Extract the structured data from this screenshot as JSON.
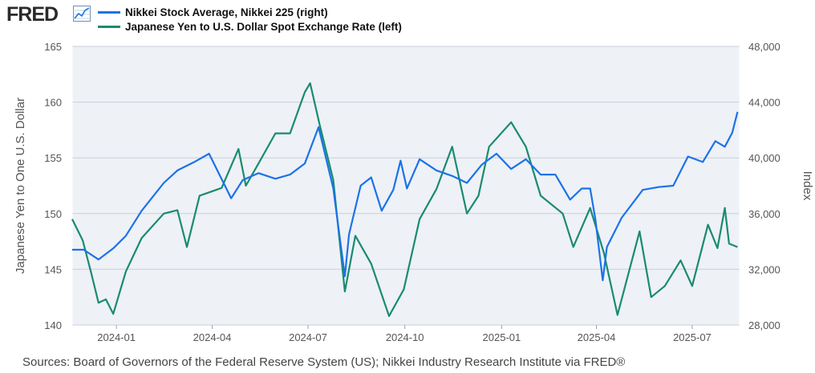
{
  "header": {
    "logo": "FRED"
  },
  "colors": {
    "nikkei": "#1a73e8",
    "yen": "#198b6f",
    "plot_bg": "#eef1f6",
    "grid": "#c9cfd8"
  },
  "legend": [
    {
      "label": "Nikkei Stock Average, Nikkei 225 (right)",
      "color": "#1a73e8"
    },
    {
      "label": "Japanese Yen to U.S. Dollar Spot Exchange Rate (left)",
      "color": "#198b6f"
    }
  ],
  "footer": {
    "source": "Sources: Board of Governors of the Federal Reserve System (US); Nikkei Industry Research Institute via FRED®"
  },
  "chart_data": {
    "type": "line",
    "x_ticks": [
      "2024-01",
      "2024-04",
      "2024-07",
      "2024-10",
      "2025-01",
      "2025-04",
      "2025-07"
    ],
    "left_axis": {
      "label": "Japanese Yen to One U.S. Dollar",
      "ticks": [
        140,
        145,
        150,
        155,
        160,
        165
      ],
      "range": [
        140,
        165
      ]
    },
    "right_axis": {
      "label": "Index",
      "ticks": [
        "28,000",
        "32,000",
        "36,000",
        "40,000",
        "44,000",
        "48,000"
      ],
      "range": [
        28000,
        48000
      ]
    },
    "x_range": [
      "2023-11-20",
      "2025-08-15"
    ],
    "grid": true,
    "series": [
      {
        "name": "Nikkei Stock Average, Nikkei 225 (right)",
        "axis": "right",
        "points": [
          [
            "2023-11-20",
            33400
          ],
          [
            "2023-12-01",
            33400
          ],
          [
            "2023-12-15",
            32700
          ],
          [
            "2023-12-29",
            33500
          ],
          [
            "2024-01-10",
            34400
          ],
          [
            "2024-01-25",
            36200
          ],
          [
            "2024-02-15",
            38200
          ],
          [
            "2024-02-28",
            39100
          ],
          [
            "2024-03-15",
            39700
          ],
          [
            "2024-03-29",
            40300
          ],
          [
            "2024-04-19",
            37100
          ],
          [
            "2024-04-30",
            38400
          ],
          [
            "2024-05-15",
            38900
          ],
          [
            "2024-05-31",
            38500
          ],
          [
            "2024-06-14",
            38800
          ],
          [
            "2024-06-28",
            39600
          ],
          [
            "2024-07-11",
            42200
          ],
          [
            "2024-07-25",
            37800
          ],
          [
            "2024-08-05",
            31500
          ],
          [
            "2024-08-09",
            34500
          ],
          [
            "2024-08-20",
            38000
          ],
          [
            "2024-08-30",
            38600
          ],
          [
            "2024-09-09",
            36200
          ],
          [
            "2024-09-20",
            37700
          ],
          [
            "2024-09-27",
            39800
          ],
          [
            "2024-10-03",
            37800
          ],
          [
            "2024-10-15",
            39900
          ],
          [
            "2024-10-31",
            39100
          ],
          [
            "2024-11-15",
            38700
          ],
          [
            "2024-11-29",
            38200
          ],
          [
            "2024-12-13",
            39500
          ],
          [
            "2024-12-27",
            40300
          ],
          [
            "2025-01-10",
            39200
          ],
          [
            "2025-01-24",
            39900
          ],
          [
            "2025-02-07",
            38800
          ],
          [
            "2025-02-21",
            38800
          ],
          [
            "2025-03-07",
            37000
          ],
          [
            "2025-03-18",
            37800
          ],
          [
            "2025-03-26",
            37800
          ],
          [
            "2025-03-31",
            35600
          ],
          [
            "2025-04-07",
            31200
          ],
          [
            "2025-04-11",
            33600
          ],
          [
            "2025-04-25",
            35700
          ],
          [
            "2025-05-15",
            37700
          ],
          [
            "2025-05-30",
            37900
          ],
          [
            "2025-06-13",
            38000
          ],
          [
            "2025-06-27",
            40100
          ],
          [
            "2025-07-11",
            39700
          ],
          [
            "2025-07-23",
            41200
          ],
          [
            "2025-08-01",
            40800
          ],
          [
            "2025-08-08",
            41800
          ],
          [
            "2025-08-13",
            43300
          ]
        ]
      },
      {
        "name": "Japanese Yen to U.S. Dollar Spot Exchange Rate (left)",
        "axis": "left",
        "points": [
          [
            "2023-11-20",
            149.5
          ],
          [
            "2023-11-30",
            147.6
          ],
          [
            "2023-12-08",
            144.7
          ],
          [
            "2023-12-15",
            142.0
          ],
          [
            "2023-12-22",
            142.3
          ],
          [
            "2023-12-29",
            141.0
          ],
          [
            "2024-01-10",
            144.8
          ],
          [
            "2024-01-25",
            147.8
          ],
          [
            "2024-02-15",
            150.0
          ],
          [
            "2024-02-28",
            150.3
          ],
          [
            "2024-03-08",
            147.0
          ],
          [
            "2024-03-20",
            151.6
          ],
          [
            "2024-04-10",
            152.3
          ],
          [
            "2024-04-26",
            155.8
          ],
          [
            "2024-05-03",
            152.5
          ],
          [
            "2024-05-15",
            154.5
          ],
          [
            "2024-05-31",
            157.2
          ],
          [
            "2024-06-14",
            157.2
          ],
          [
            "2024-06-28",
            160.9
          ],
          [
            "2024-07-03",
            161.7
          ],
          [
            "2024-07-12",
            158.0
          ],
          [
            "2024-07-25",
            153.0
          ],
          [
            "2024-08-05",
            143.0
          ],
          [
            "2024-08-15",
            148.0
          ],
          [
            "2024-08-30",
            145.5
          ],
          [
            "2024-09-16",
            140.8
          ],
          [
            "2024-09-30",
            143.2
          ],
          [
            "2024-10-15",
            149.5
          ],
          [
            "2024-10-31",
            152.2
          ],
          [
            "2024-11-15",
            156.0
          ],
          [
            "2024-11-29",
            150.0
          ],
          [
            "2024-12-10",
            151.6
          ],
          [
            "2024-12-20",
            156.0
          ],
          [
            "2025-01-10",
            158.2
          ],
          [
            "2025-01-24",
            156.0
          ],
          [
            "2025-02-07",
            151.6
          ],
          [
            "2025-02-28",
            150.0
          ],
          [
            "2025-03-10",
            147.0
          ],
          [
            "2025-03-26",
            150.5
          ],
          [
            "2025-04-08",
            146.5
          ],
          [
            "2025-04-21",
            140.9
          ],
          [
            "2025-05-12",
            148.4
          ],
          [
            "2025-05-23",
            142.5
          ],
          [
            "2025-06-05",
            143.5
          ],
          [
            "2025-06-20",
            145.8
          ],
          [
            "2025-07-01",
            143.5
          ],
          [
            "2025-07-16",
            149.0
          ],
          [
            "2025-07-25",
            146.9
          ],
          [
            "2025-08-01",
            150.5
          ],
          [
            "2025-08-05",
            147.3
          ],
          [
            "2025-08-13",
            147.0
          ]
        ]
      }
    ]
  }
}
